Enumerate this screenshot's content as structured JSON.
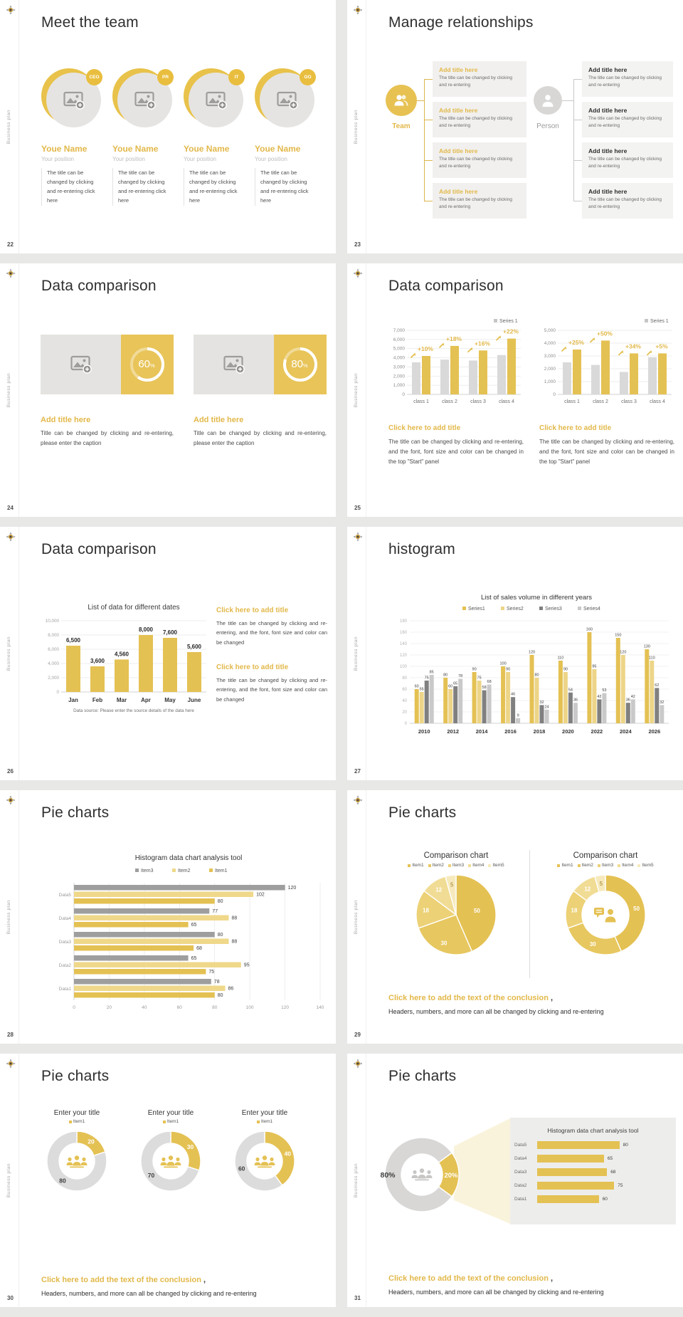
{
  "branding": {
    "sidebar_text": "Business plan"
  },
  "colors": {
    "gold": "#E4C153",
    "gold_text": "#E2B84A",
    "light_yellow": "#EDD47E",
    "pale_yellow": "#F1DC95",
    "palest_yellow": "#F6EABD",
    "dark_gray": "#808080",
    "mid_gray": "#C9C9C9",
    "bar_gray": "#D9D9D9",
    "legend_gray": "#9E9E9E",
    "donut_gray": "#DCDCDC",
    "beam": "#FAF3DC"
  },
  "slides": {
    "s22": {
      "page_number": "22",
      "title": "Meet the team",
      "members": [
        {
          "badge": "CEO",
          "name": "Youe Name",
          "position": "Your position",
          "desc": "The title can be changed by clicking and re-entering click here"
        },
        {
          "badge": "PR",
          "name": "Youe Name",
          "position": "Your position",
          "desc": "The title can be changed by clicking and re-entering click here"
        },
        {
          "badge": "IT",
          "name": "Youe Name",
          "position": "Your position",
          "desc": "The title can be changed by clicking and re-entering click here"
        },
        {
          "badge": "GO",
          "name": "Youe Name",
          "position": "Your position",
          "desc": "The title can be changed by clicking and re-entering click here"
        }
      ]
    },
    "s23": {
      "page_number": "23",
      "title": "Manage relationships",
      "team_label": "Team",
      "person_label": "Person",
      "item_title": "Add title here",
      "item_text": "The title can be changed by clicking and re-entering",
      "left_count": 4,
      "right_count": 4
    },
    "s24": {
      "page_number": "24",
      "title": "Data comparison",
      "cards": [
        {
          "percent": 60,
          "percent_text": "60",
          "percent_suffix": "%",
          "heading": "Add title here",
          "caption": "Title can be changed by clicking and re-entering, please enter the caption"
        },
        {
          "percent": 80,
          "percent_text": "80",
          "percent_suffix": "%",
          "heading": "Add title here",
          "caption": "Title can be changed by clicking and re-entering, please enter the caption"
        }
      ]
    },
    "s25": {
      "page_number": "25",
      "title": "Data comparison",
      "charts": [
        {
          "type": "bar",
          "legend": "Series 1",
          "categories": [
            "class 1",
            "class 2",
            "class 3",
            "class 4"
          ],
          "gray": [
            3500,
            3800,
            3700,
            4300
          ],
          "yellow": [
            4200,
            5300,
            4800,
            6100
          ],
          "growth": [
            "+10%",
            "+18%",
            "+16%",
            "+22%"
          ],
          "ymax": 7000,
          "yticks": [
            "7,000",
            "6,000",
            "5,000",
            "4,000",
            "3,000",
            "2,000",
            "1,000",
            "0"
          ]
        },
        {
          "type": "bar",
          "legend": "Series 1",
          "categories": [
            "class 1",
            "class 2",
            "class 3",
            "class 4"
          ],
          "gray": [
            2500,
            2300,
            1750,
            2900
          ],
          "yellow": [
            3500,
            4200,
            3200,
            3200
          ],
          "growth": [
            "+25%",
            "+50%",
            "+34%",
            "+5%"
          ],
          "ymax": 5000,
          "yticks": [
            "5,000",
            "4,000",
            "3,000",
            "2,000",
            "1,000",
            "0"
          ]
        }
      ],
      "blocks": [
        {
          "heading": "Click here to add title",
          "text": "The title can be changed by clicking and re-entering, and the font, font size and color can be changed in the top \"Start\" panel"
        },
        {
          "heading": "Click here to add title",
          "text": "The title can be changed by clicking and re-entering, and the font, font size and color can be changed in the top \"Start\" panel"
        }
      ]
    },
    "s26": {
      "page_number": "26",
      "title": "Data comparison",
      "chart": {
        "type": "bar",
        "title": "List of data for different dates",
        "categories": [
          "Jan",
          "Feb",
          "Mar",
          "Apr",
          "May",
          "June"
        ],
        "values": [
          6500,
          3600,
          4560,
          8000,
          7600,
          5600
        ],
        "value_labels": [
          "6,500",
          "3,600",
          "4,560",
          "8,000",
          "7,600",
          "5,600"
        ],
        "ymax": 10000,
        "yticks": [
          "10,000",
          "8,000",
          "6,000",
          "4,000",
          "2,000",
          "0"
        ],
        "caption": "Data source: Please enter the source details of the data here"
      },
      "blocks": [
        {
          "heading": "Click here to add title",
          "text": "The title can be changed by clicking and re-entering, and the font, font size and color can be changed"
        },
        {
          "heading": "Click here to add title",
          "text": "The title can be changed by clicking and re-entering, and the font, font size and color can be changed"
        }
      ]
    },
    "s27": {
      "page_number": "27",
      "title": "histogram",
      "chart": {
        "type": "bar",
        "title": "List of sales volume in different years",
        "legend": [
          "Series1",
          "Series2",
          "Series3",
          "Series4"
        ],
        "categories": [
          "2010",
          "2012",
          "2014",
          "2016",
          "2018",
          "2020",
          "2022",
          "2024",
          "2026"
        ],
        "series": [
          [
            60,
            80,
            90,
            100,
            120,
            110,
            160,
            150,
            130
          ],
          [
            55,
            60,
            75,
            90,
            80,
            90,
            95,
            120,
            110
          ],
          [
            75,
            65,
            58,
            46,
            32,
            54,
            42,
            36,
            62
          ],
          [
            85,
            78,
            68,
            9,
            24,
            36,
            53,
            42,
            32
          ]
        ],
        "ymax": 180,
        "yticks": [
          "180",
          "160",
          "140",
          "120",
          "100",
          "80",
          "60",
          "40",
          "20",
          "0"
        ]
      }
    },
    "s28": {
      "page_number": "28",
      "title": "Pie charts",
      "chart": {
        "type": "bar-horizontal",
        "title": "Histogram data chart analysis tool",
        "legend": [
          "Item3",
          "Item2",
          "Item1"
        ],
        "categories": [
          "Data5",
          "Data4",
          "Data3",
          "Data2",
          "Data1"
        ],
        "item3": [
          120,
          77,
          80,
          65,
          78
        ],
        "item2": [
          102,
          88,
          88,
          95,
          86
        ],
        "item1": [
          80,
          65,
          68,
          75,
          80
        ],
        "xmax": 140,
        "xticks": [
          "0",
          "20",
          "40",
          "60",
          "80",
          "100",
          "120",
          "140"
        ]
      }
    },
    "s29": {
      "page_number": "29",
      "title": "Pie charts",
      "chart_title": "Comparison chart",
      "legend": [
        "Item1",
        "Item2",
        "Item3",
        "Item4",
        "Item5"
      ],
      "values": [
        50,
        30,
        18,
        12,
        5
      ],
      "conclusion_heading": "Click here to add the text of the conclusion",
      "conclusion_comma": ",",
      "conclusion_text": "Headers, numbers, and more can all be changed by clicking and re-entering"
    },
    "s30": {
      "page_number": "30",
      "title": "Pie charts",
      "chart_title": "Enter your title",
      "legend": [
        "Item1"
      ],
      "donuts": [
        {
          "yellow": 20,
          "gray": 80
        },
        {
          "yellow": 30,
          "gray": 70
        },
        {
          "yellow": 40,
          "gray": 60
        }
      ],
      "conclusion_heading": "Click here to add the text of the conclusion",
      "conclusion_comma": ",",
      "conclusion_text": "Headers, numbers, and more can all be changed by clicking and re-entering"
    },
    "s31": {
      "page_number": "31",
      "title": "Pie charts",
      "donut": {
        "gray": 80,
        "yellow": 20,
        "gray_label": "80%",
        "yellow_label": "20%"
      },
      "panel": {
        "title": "Histogram data chart analysis tool",
        "categories": [
          "Data5",
          "Data4",
          "Data3",
          "Data2",
          "Data1"
        ],
        "values": [
          80,
          65,
          68,
          75,
          60
        ],
        "xmax": 90
      },
      "conclusion_heading": "Click here to add the text of the conclusion",
      "conclusion_comma": ",",
      "conclusion_text": "Headers, numbers, and more can all be changed by clicking and re-entering"
    }
  }
}
